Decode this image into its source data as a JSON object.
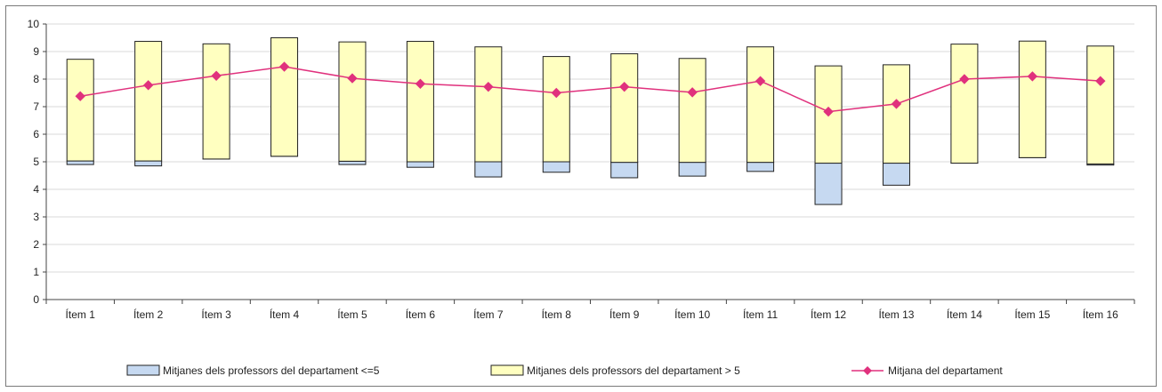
{
  "chart_data": {
    "type": "bar",
    "categories": [
      "Ítem 1",
      "Ítem 2",
      "Ítem 3",
      "Ítem 4",
      "Ítem 5",
      "Ítem 6",
      "Ítem 7",
      "Ítem 8",
      "Ítem 9",
      "Ítem 10",
      "Ítem 11",
      "Ítem 12",
      "Ítem 13",
      "Ítem 14",
      "Ítem 15",
      "Ítem 16"
    ],
    "series": [
      {
        "name": "Mitjanes dels professors del departament <=5",
        "kind": "floating-bar",
        "color": "#c6d9f1",
        "low": [
          4.9,
          4.85,
          5.1,
          5.2,
          4.9,
          4.8,
          4.45,
          4.62,
          4.42,
          4.48,
          4.65,
          3.45,
          4.15,
          4.95,
          5.15,
          4.88
        ],
        "high": [
          5.03,
          5.03,
          5.1,
          5.2,
          5.02,
          5.0,
          5.0,
          5.0,
          4.98,
          4.98,
          4.98,
          4.95,
          4.95,
          4.95,
          5.15,
          4.92
        ]
      },
      {
        "name": "Mitjanes dels professors del departament > 5",
        "kind": "floating-bar",
        "color": "#ffffc0",
        "low": [
          5.03,
          5.03,
          5.1,
          5.2,
          5.02,
          5.0,
          5.0,
          5.0,
          4.98,
          4.98,
          4.98,
          4.95,
          4.95,
          4.95,
          5.15,
          4.92
        ],
        "high": [
          8.72,
          9.37,
          9.28,
          9.5,
          9.35,
          9.37,
          9.17,
          8.82,
          8.92,
          8.75,
          9.17,
          8.48,
          8.52,
          9.27,
          9.38,
          9.2
        ]
      },
      {
        "name": "Mitjana del departament",
        "kind": "line",
        "color": "#e0317d",
        "values": [
          7.38,
          7.78,
          8.12,
          8.45,
          8.03,
          7.83,
          7.72,
          7.5,
          7.72,
          7.52,
          7.93,
          6.82,
          7.1,
          8.0,
          8.1,
          7.93
        ]
      }
    ],
    "ylim": [
      0,
      10
    ],
    "yticks": [
      "0",
      "1",
      "2",
      "3",
      "4",
      "5",
      "6",
      "7",
      "8",
      "9",
      "10"
    ],
    "grid": true,
    "legend_position": "bottom"
  }
}
